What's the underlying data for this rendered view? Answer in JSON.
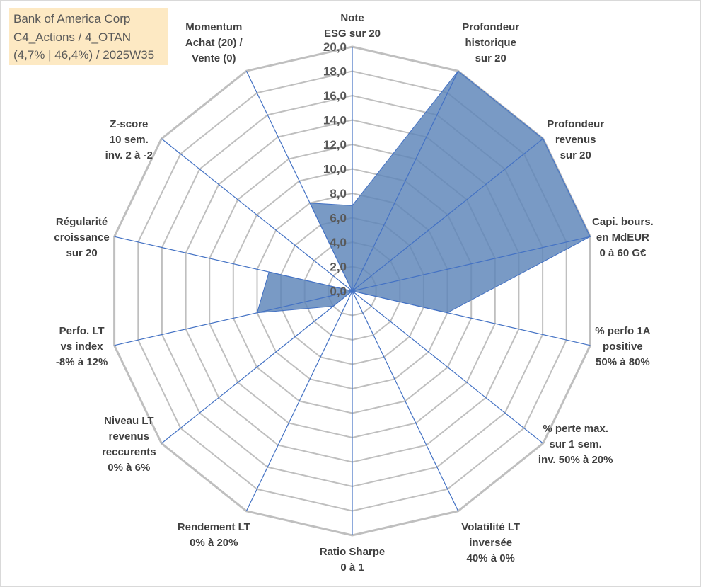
{
  "info_box": {
    "line1": "Bank of America Corp",
    "line2": "C4_Actions / 4_OTAN",
    "line3": "(4,7% | 46,4%) / 2025W35"
  },
  "chart_data": {
    "type": "radar",
    "title": "",
    "rlim": [
      0,
      20
    ],
    "tick_values": [
      0,
      2,
      4,
      6,
      8,
      10,
      12,
      14,
      16,
      18,
      20
    ],
    "tick_labels": [
      "0,0",
      "2,0",
      "4,0",
      "6,0",
      "8,0",
      "10,0",
      "12,0",
      "14,0",
      "16,0",
      "18,0",
      "20,0"
    ],
    "grid": true,
    "fill_color": "#5b84b8",
    "spoke_color": "#4472c4",
    "grid_color": "#bfbfbf",
    "axes": [
      {
        "label": [
          "Note",
          "ESG sur 20"
        ],
        "value": 7.0
      },
      {
        "label": [
          "Profondeur",
          "historique",
          "sur 20"
        ],
        "value": 20.0
      },
      {
        "label": [
          "Profondeur",
          "revenus",
          "sur 20"
        ],
        "value": 20.0
      },
      {
        "label": [
          "Capi. bours.",
          "en MdEUR",
          "0 à 60 G€"
        ],
        "value": 20.0
      },
      {
        "label": [
          "% perfo 1A",
          "positive",
          "50% à 80%"
        ],
        "value": 8.0
      },
      {
        "label": [
          "% perte max.",
          "sur 1 sem.",
          "inv. 50% à 20%"
        ],
        "value": 0.0
      },
      {
        "label": [
          "Volatilité LT",
          "inversée",
          "40% à 0%"
        ],
        "value": 0.0
      },
      {
        "label": [
          "Ratio Sharpe",
          "0 à 1"
        ],
        "value": 0.0
      },
      {
        "label": [
          "Rendement LT",
          "0% à 20%"
        ],
        "value": 0.0
      },
      {
        "label": [
          "Niveau LT",
          "revenus",
          "reccurents",
          "0% à 6%"
        ],
        "value": 2.0
      },
      {
        "label": [
          "Perfo. LT",
          "vs index",
          "-8% à 12%"
        ],
        "value": 8.0
      },
      {
        "label": [
          "Régularité",
          "croissance",
          "sur 20"
        ],
        "value": 7.0
      },
      {
        "label": [
          "Z-score",
          "10 sem.",
          "inv. 2 à -2"
        ],
        "value": 0.0
      },
      {
        "label": [
          "Momentum",
          "Achat (20) /",
          "Vente (0)"
        ],
        "value": 8.0
      }
    ]
  }
}
